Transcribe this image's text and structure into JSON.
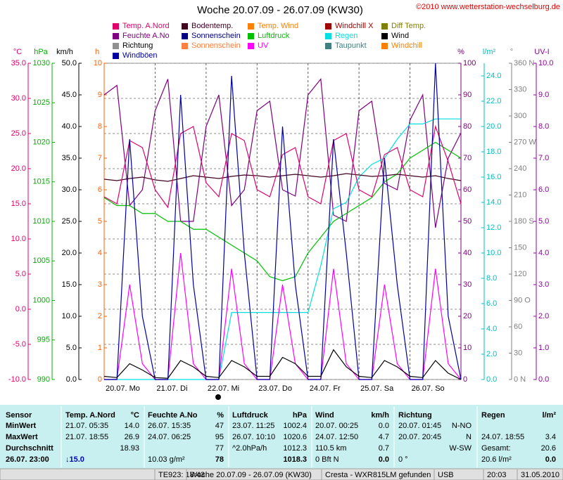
{
  "header": {
    "title": "Woche 20.07.09 - 26.07.09 (KW30)",
    "copyright": "©2010 www.wetterstation-wechselburg.de"
  },
  "legend": [
    {
      "name": "Temp. A.Nord",
      "color": "#e0006c"
    },
    {
      "name": "Bodentemp.",
      "color": "#400020"
    },
    {
      "name": "Temp. Wind",
      "color": "#ff8000"
    },
    {
      "name": "Windchill X",
      "color": "#a00000"
    },
    {
      "name": "Diff Temp.",
      "color": "#808000"
    },
    {
      "name": "Feuchte A.No",
      "color": "#800080"
    },
    {
      "name": "Sonnenschein",
      "color": "#000080"
    },
    {
      "name": "Luftdruck",
      "color": "#00c000"
    },
    {
      "name": "Regen",
      "color": "#00e0e0"
    },
    {
      "name": "Wind",
      "color": "#000000"
    },
    {
      "name": "Richtung",
      "color": "#909090"
    },
    {
      "name": "Sonnenschein",
      "color": "#ff8040"
    },
    {
      "name": "UV",
      "color": "#ff00ff"
    },
    {
      "name": "Taupunkt",
      "color": "#408080"
    },
    {
      "name": "Windchill",
      "color": "#ff8000"
    },
    {
      "name": "Windböen",
      "color": "#0000a0"
    }
  ],
  "chart": {
    "type": "line",
    "axes": [
      {
        "id": "C",
        "unit": "°C",
        "color": "#e0006c",
        "lim": [
          -10,
          35
        ],
        "ticks": [
          {
            "value": 35,
            "label": "35.0"
          },
          {
            "value": 30,
            "label": "30.0"
          },
          {
            "value": 25,
            "label": "25.0"
          },
          {
            "value": 20,
            "label": "20.0"
          },
          {
            "value": 15,
            "label": "15.0"
          },
          {
            "value": 10,
            "label": "10.0"
          },
          {
            "value": 5,
            "label": "5.0"
          },
          {
            "value": 0,
            "label": "0.0"
          },
          {
            "value": -5,
            "label": "-5.0"
          },
          {
            "value": -10,
            "label": "-10.0"
          }
        ]
      },
      {
        "id": "hPa",
        "unit": "hPa",
        "color": "#00b000",
        "lim": [
          990,
          1030
        ],
        "ticks": [
          1030,
          1025,
          1020,
          1015,
          1010,
          1005,
          1000,
          995,
          990
        ]
      },
      {
        "id": "kmh",
        "unit": "km/h",
        "color": "#000000",
        "lim": [
          0,
          50
        ],
        "ticks": [
          {
            "value": 50,
            "label": "50.0"
          },
          {
            "value": 45,
            "label": "45.0"
          },
          {
            "value": 40,
            "label": "40.0"
          },
          {
            "value": 35,
            "label": "35.0"
          },
          {
            "value": 30,
            "label": "30.0"
          },
          {
            "value": 25,
            "label": "25.0"
          },
          {
            "value": 20,
            "label": "20.0"
          },
          {
            "value": 15,
            "label": "15.0"
          },
          {
            "value": 10,
            "label": "10.0"
          },
          {
            "value": 5,
            "label": "5.0"
          },
          {
            "value": 0,
            "label": "0.0"
          }
        ]
      },
      {
        "id": "h",
        "unit": "h",
        "color": "#ff6000",
        "lim": [
          0,
          10
        ],
        "ticks": [
          10,
          9,
          8,
          7,
          6,
          5,
          4,
          3,
          2,
          1,
          0
        ]
      },
      {
        "id": "pct",
        "unit": "%",
        "color": "#800080",
        "lim": [
          0,
          100
        ],
        "ticks": [
          100,
          90,
          80,
          70,
          60,
          50,
          40,
          30,
          20,
          10,
          0
        ]
      },
      {
        "id": "lm2",
        "unit": "l/m²",
        "color": "#00c0c0",
        "lim": [
          0,
          25
        ],
        "ticks": [
          {
            "value": 24,
            "label": "24.0"
          },
          {
            "value": 22,
            "label": "22.0"
          },
          {
            "value": 20,
            "label": "20.0"
          },
          {
            "value": 18,
            "label": "18.0"
          },
          {
            "value": 16,
            "label": "16.0"
          },
          {
            "value": 14,
            "label": "14.0"
          },
          {
            "value": 12,
            "label": "12.0"
          },
          {
            "value": 10,
            "label": "10.0"
          },
          {
            "value": 8,
            "label": "8.0"
          },
          {
            "value": 6,
            "label": "6.0"
          },
          {
            "value": 4,
            "label": "4.0"
          },
          {
            "value": 2,
            "label": "2.0"
          },
          {
            "value": 0,
            "label": "0.0"
          }
        ]
      },
      {
        "id": "deg",
        "unit": "°",
        "color": "#808080",
        "lim": [
          0,
          360
        ],
        "ticks": [
          {
            "value": 360,
            "label": "360 N"
          },
          330,
          300,
          {
            "value": 270,
            "label": "270 W"
          },
          240,
          210,
          {
            "value": 180,
            "label": "180 S"
          },
          150,
          120,
          {
            "value": 90,
            "label": "90 O"
          },
          60,
          30,
          {
            "value": 0,
            "label": "0 N"
          }
        ]
      },
      {
        "id": "uv",
        "unit": "UV-I",
        "color": "#9000a0",
        "lim": [
          0,
          10
        ],
        "ticks": [
          {
            "value": 10,
            "label": "10.0"
          },
          {
            "value": 9,
            "label": "9.0"
          },
          {
            "value": 8,
            "label": "8.0"
          },
          {
            "value": 7,
            "label": "7.0"
          },
          {
            "value": 6,
            "label": "6.0"
          },
          {
            "value": 5,
            "label": "5.0"
          },
          {
            "value": 4,
            "label": "4.0"
          },
          {
            "value": 3,
            "label": "3.0"
          },
          {
            "value": 2,
            "label": "2.0"
          },
          {
            "value": 1,
            "label": "1.0"
          },
          {
            "value": 0,
            "label": "0.0"
          }
        ]
      }
    ],
    "xlim": [
      0,
      7
    ],
    "days": [
      "20.07. Mo",
      "21.07. Di",
      "22.07. Mi",
      "23.07. Do",
      "24.07. Fr",
      "25.07. Sa",
      "26.07. So"
    ],
    "x": [
      0,
      0.25,
      0.5,
      0.75,
      1,
      1.25,
      1.5,
      1.75,
      2,
      2.25,
      2.5,
      2.75,
      3,
      3.25,
      3.5,
      3.75,
      4,
      4.25,
      4.5,
      4.75,
      5,
      5.25,
      5.5,
      5.75,
      6,
      6.25,
      6.5,
      6.75,
      7
    ],
    "series": [
      {
        "name": "Feuchte A.No",
        "axis": "pct",
        "color": "#800080",
        "values": [
          90,
          93,
          55,
          60,
          85,
          95,
          50,
          50,
          80,
          90,
          55,
          60,
          85,
          88,
          60,
          58,
          90,
          95,
          52,
          50,
          85,
          88,
          62,
          60,
          82,
          90,
          48,
          70,
          78
        ]
      },
      {
        "name": "Luftdruck",
        "axis": "hPa",
        "color": "#00c000",
        "values": [
          1013,
          1012,
          1012,
          1011,
          1011,
          1010,
          1010,
          1009,
          1009,
          1008,
          1007,
          1006,
          1005,
          1003,
          1002.5,
          1003,
          1006,
          1008,
          1010,
          1011,
          1012,
          1013,
          1015,
          1016,
          1018,
          1019,
          1020,
          1019,
          1018
        ]
      },
      {
        "name": "Regen",
        "axis": "lm2",
        "color": "#00e0e0",
        "values": [
          0,
          0,
          0,
          0,
          0,
          0,
          0,
          0,
          0,
          0,
          5.3,
          5.3,
          5.3,
          5.3,
          5.3,
          5.3,
          5.3,
          9,
          13.5,
          14,
          16,
          17,
          17.5,
          19,
          20.2,
          20.2,
          20.6,
          20.6,
          20.6
        ]
      },
      {
        "name": "Bodentemp.",
        "axis": "C",
        "color": "#400020",
        "values": [
          18.5,
          18.3,
          18.6,
          18.8,
          18.4,
          18.2,
          18.6,
          19,
          18.8,
          18.6,
          18.9,
          19.1,
          19,
          18.8,
          19,
          19.2,
          19,
          18.8,
          19,
          19.3,
          19.1,
          18.9,
          19,
          19.2,
          19,
          18.8,
          19,
          18.6,
          18.3
        ]
      },
      {
        "name": "Temp. A.Nord",
        "axis": "C",
        "color": "#e0006c",
        "values": [
          16,
          15,
          24,
          23,
          17,
          14.5,
          25,
          26,
          18,
          16,
          25,
          24,
          17,
          16,
          22,
          23,
          16,
          15,
          24,
          25,
          17,
          16,
          22,
          23,
          17,
          16,
          26,
          21,
          15
        ]
      },
      {
        "name": "UV",
        "axis": "uv",
        "color": "#ff00ff",
        "values": [
          0,
          0,
          3,
          0.5,
          0,
          0,
          4,
          0.5,
          0,
          0,
          3.5,
          0.5,
          0,
          0,
          3,
          0.5,
          0,
          0,
          3.5,
          0.5,
          0,
          0,
          3,
          0.5,
          0,
          0,
          3.5,
          0.5,
          0
        ]
      },
      {
        "name": "Windböen",
        "axis": "kmh",
        "color": "#0000a0",
        "values": [
          0,
          0,
          38,
          10,
          0,
          0,
          45,
          15,
          0,
          0,
          48,
          20,
          0,
          0,
          40,
          15,
          0,
          0,
          38,
          20,
          0,
          0,
          35,
          15,
          0,
          0,
          50,
          10,
          0
        ]
      },
      {
        "name": "Wind",
        "axis": "kmh",
        "color": "#000000",
        "values": [
          0.5,
          0.3,
          2.5,
          1.5,
          0.3,
          0.2,
          3,
          2,
          0.5,
          0.3,
          3,
          2,
          0.5,
          0.5,
          3.5,
          2.5,
          0.5,
          0.5,
          4.7,
          2,
          0.5,
          0.3,
          3,
          2,
          0.5,
          0.3,
          3,
          1,
          0
        ]
      }
    ]
  },
  "table": {
    "rows": [
      [
        "Sensor",
        "Temp. A.Nord",
        "°C",
        "Feuchte A.No",
        "%",
        "Luftdruck",
        "hPa",
        "Wind",
        "km/h",
        "Richtung",
        null,
        "Regen",
        "l/m²"
      ],
      [
        "MinWert",
        "21.07. 05:35",
        "14.0",
        "26.07. 15:35",
        "47",
        "23.07. 11:25",
        "1002.4",
        "20.07. 00:25",
        "0.0",
        "20.07. 01:45",
        "N-NO",
        null,
        null
      ],
      [
        "MaxWert",
        "21.07. 18:55",
        "26.9",
        "24.07. 06:25",
        "95",
        "26.07. 10:10",
        "1020.6",
        "24.07. 12:50",
        "4.7",
        "20.07. 20:45",
        "N",
        "24.07. 18:55",
        "3.4"
      ],
      [
        "Durchschnitt",
        null,
        "18.93",
        null,
        "77",
        "^2.0hPa/h",
        "1012.3",
        "110.5 km",
        "0.7",
        null,
        "W-SW",
        "Gesamt:",
        "20.6"
      ],
      [
        "26.07. 23:00",
        "↓15.0",
        null,
        "10.03 g/m²",
        "78",
        null,
        "1018.3",
        "0 Bft N",
        "0.0",
        "0 °",
        null,
        "20.6 l/m²",
        "0.0"
      ]
    ]
  },
  "statusbar": [
    "TE923: 18:43",
    "Woche 20.07.09 - 26.07.09 (KW30)",
    "Cresta - WXR815LM gefunden",
    "USB",
    "20:03",
    "31.05.2010"
  ]
}
